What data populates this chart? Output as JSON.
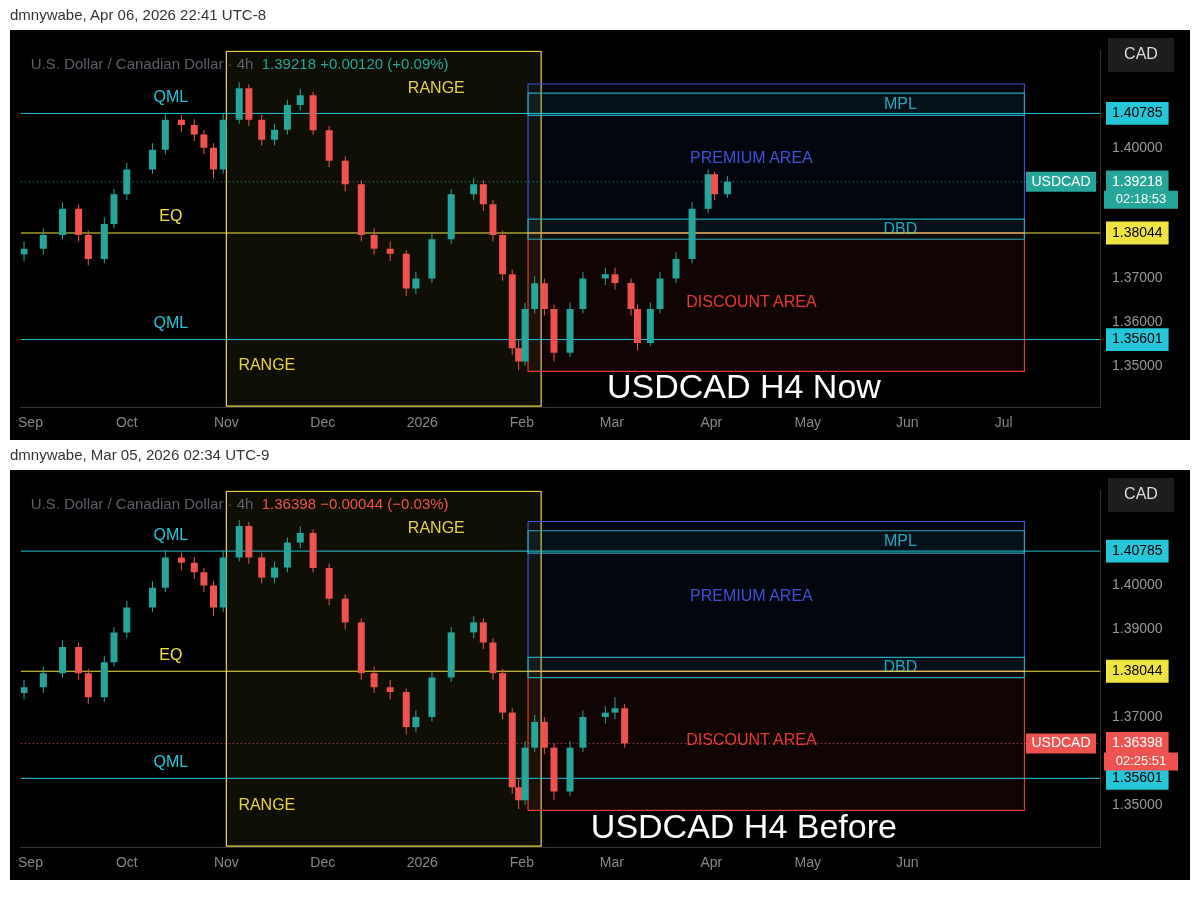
{
  "chart_data": [
    {
      "type": "candlestick",
      "title": "U.S. Dollar / Canadian Dollar · 4h",
      "subtitle": "1.39218 +0.00120 (+0.09%)",
      "x": [
        "2025-08-30",
        "2025-09-05",
        "2025-09-11",
        "2025-09-16",
        "2025-09-19",
        "2025-09-24",
        "2025-09-27",
        "2025-10-01",
        "2025-10-09",
        "2025-10-13",
        "2025-10-18",
        "2025-10-22",
        "2025-10-25",
        "2025-10-28",
        "2025-10-31",
        "2025-11-05",
        "2025-11-08",
        "2025-11-12",
        "2025-11-16",
        "2025-11-20",
        "2025-11-24",
        "2025-11-28",
        "2025-12-03",
        "2025-12-08",
        "2025-12-13",
        "2025-12-17",
        "2025-12-22",
        "2025-12-27",
        "2025-12-30",
        "2026-01-04",
        "2026-01-10",
        "2026-01-17",
        "2026-01-20",
        "2026-01-23",
        "2026-01-26",
        "2026-01-29",
        "2026-01-31",
        "2026-02-02",
        "2026-02-05",
        "2026-02-08",
        "2026-02-11",
        "2026-02-16",
        "2026-02-20",
        "2026-02-27",
        "2026-03-02",
        "2026-03-07",
        "2026-03-09",
        "2026-03-13",
        "2026-03-16",
        "2026-03-21",
        "2026-03-26",
        "2026-03-31",
        "2026-04-02",
        "2026-04-06"
      ],
      "ohlc": [
        [
          1.3755,
          1.3785,
          1.374,
          1.3768
        ],
        [
          1.3768,
          1.3815,
          1.3755,
          1.38
        ],
        [
          1.38,
          1.3875,
          1.379,
          1.386
        ],
        [
          1.386,
          1.387,
          1.3785,
          1.38
        ],
        [
          1.38,
          1.381,
          1.373,
          1.3745
        ],
        [
          1.3745,
          1.384,
          1.3735,
          1.3825
        ],
        [
          1.3825,
          1.3905,
          1.3815,
          1.3893
        ],
        [
          1.3893,
          1.3965,
          1.388,
          1.395
        ],
        [
          1.395,
          1.401,
          1.394,
          1.3995
        ],
        [
          1.3995,
          1.408,
          1.3985,
          1.4064
        ],
        [
          1.4064,
          1.4075,
          1.4035,
          1.4052
        ],
        [
          1.4052,
          1.4065,
          1.4015,
          1.403
        ],
        [
          1.403,
          1.404,
          1.3985,
          1.4
        ],
        [
          1.4,
          1.401,
          1.393,
          1.395
        ],
        [
          1.395,
          1.408,
          1.394,
          1.4064
        ],
        [
          1.4064,
          1.415,
          1.4055,
          1.4136
        ],
        [
          1.4136,
          1.4145,
          1.405,
          1.4064
        ],
        [
          1.4064,
          1.4075,
          1.4005,
          1.4018
        ],
        [
          1.4018,
          1.4055,
          1.4005,
          1.4041
        ],
        [
          1.4041,
          1.411,
          1.403,
          1.4098
        ],
        [
          1.4098,
          1.4135,
          1.4085,
          1.412
        ],
        [
          1.412,
          1.4128,
          1.403,
          1.404
        ],
        [
          1.404,
          1.405,
          1.3955,
          1.397
        ],
        [
          1.397,
          1.398,
          1.39,
          1.3916
        ],
        [
          1.3916,
          1.3925,
          1.3785,
          1.38
        ],
        [
          1.38,
          1.3815,
          1.3755,
          1.3768
        ],
        [
          1.3768,
          1.3785,
          1.374,
          1.3757
        ],
        [
          1.3757,
          1.3765,
          1.366,
          1.3677
        ],
        [
          1.3677,
          1.3715,
          1.3665,
          1.37
        ],
        [
          1.37,
          1.3805,
          1.369,
          1.379
        ],
        [
          1.379,
          1.3905,
          1.378,
          1.3893
        ],
        [
          1.3893,
          1.393,
          1.388,
          1.3916
        ],
        [
          1.3916,
          1.3925,
          1.3855,
          1.387
        ],
        [
          1.387,
          1.388,
          1.3785,
          1.38
        ],
        [
          1.38,
          1.381,
          1.3695,
          1.371
        ],
        [
          1.371,
          1.372,
          1.3525,
          1.354
        ],
        [
          1.354,
          1.356,
          1.349,
          1.351
        ],
        [
          1.351,
          1.3645,
          1.35,
          1.363
        ],
        [
          1.363,
          1.3705,
          1.362,
          1.3689
        ],
        [
          1.3689,
          1.37,
          1.3615,
          1.363
        ],
        [
          1.363,
          1.364,
          1.351,
          1.353
        ],
        [
          1.353,
          1.3645,
          1.352,
          1.363
        ],
        [
          1.363,
          1.3715,
          1.362,
          1.37
        ],
        [
          1.37,
          1.3725,
          1.3685,
          1.371
        ],
        [
          1.371,
          1.3725,
          1.3675,
          1.369
        ],
        [
          1.369,
          1.37,
          1.3615,
          1.363
        ],
        [
          1.363,
          1.364,
          1.3535,
          1.3552
        ],
        [
          1.3552,
          1.3645,
          1.3545,
          1.363
        ],
        [
          1.363,
          1.3715,
          1.362,
          1.37
        ],
        [
          1.37,
          1.376,
          1.369,
          1.3745
        ],
        [
          1.3745,
          1.3875,
          1.3735,
          1.386
        ],
        [
          1.386,
          1.395,
          1.385,
          1.3939
        ],
        [
          1.3939,
          1.3945,
          1.388,
          1.3893
        ],
        [
          1.3893,
          1.3935,
          1.3885,
          1.39218
        ]
      ],
      "xlim": [
        "2025-08-29",
        "2026-07-31"
      ],
      "xticks": [
        {
          "value": "2025-09-01",
          "label": "Sep"
        },
        {
          "value": "2025-10-01",
          "label": "Oct"
        },
        {
          "value": "2025-11-01",
          "label": "Nov"
        },
        {
          "value": "2025-12-01",
          "label": "Dec"
        },
        {
          "value": "2026-01-01",
          "label": "2026"
        },
        {
          "value": "2026-02-01",
          "label": "Feb"
        },
        {
          "value": "2026-03-01",
          "label": "Mar"
        },
        {
          "value": "2026-04-01",
          "label": "Apr"
        },
        {
          "value": "2026-05-01",
          "label": "May"
        },
        {
          "value": "2026-06-01",
          "label": "Jun"
        },
        {
          "value": "2026-07-01",
          "label": "Jul"
        }
      ],
      "ylim": [
        1.3405,
        1.4223
      ],
      "yticks": [
        {
          "value": 1.35,
          "label": "1.35000"
        },
        {
          "value": 1.35601,
          "label": "1.35601"
        },
        {
          "value": 1.36,
          "label": "1.36000"
        },
        {
          "value": 1.37,
          "label": "1.37000"
        },
        {
          "value": 1.38044,
          "label": "1.38044"
        },
        {
          "value": 1.39218,
          "label": "1.39218"
        },
        {
          "value": 1.4,
          "label": "1.40000"
        },
        {
          "value": 1.40785,
          "label": "1.40785"
        }
      ],
      "ref_lines": [
        {
          "axis": "y",
          "value": 1.40785,
          "label": "QML",
          "color": "#26c6da"
        },
        {
          "axis": "y",
          "value": 1.38044,
          "label": "EQ",
          "color": "#f0e442"
        },
        {
          "axis": "y",
          "value": 1.35601,
          "label": "QML",
          "color": "#26c6da"
        },
        {
          "axis": "y",
          "value": 1.39218,
          "label": "USDCAD",
          "color": "#26a69a",
          "line_style": "dotted"
        }
      ],
      "bands": [
        {
          "axis": "x",
          "from": "2025-11-01",
          "to": "2026-02-07",
          "label": "RANGE",
          "color": "#e6d34a"
        },
        {
          "axis": "y",
          "from": 1.38044,
          "to": 1.4146,
          "label": "PREMIUM AREA",
          "color": "#3f51d6"
        },
        {
          "axis": "y",
          "from": 1.3487,
          "to": 1.38044,
          "label": "DISCOUNT AREA",
          "color": "#e53935"
        },
        {
          "axis": "y",
          "from": 1.4074,
          "to": 1.4125,
          "label": "MPL",
          "color": "#26a6b8"
        },
        {
          "axis": "y",
          "from": 1.379,
          "to": 1.3836,
          "label": "DBD",
          "color": "#26a6b8"
        }
      ],
      "annotations": [
        "dmnywabe, Apr 06, 2026 22:41 UTC-8",
        "CAD",
        "02:18:53",
        "USDCAD H4 Now",
        "RANGE"
      ]
    },
    {
      "type": "candlestick",
      "title": "U.S. Dollar / Canadian Dollar · 4h",
      "subtitle": "1.36398 −0.00044 (−0.03%)",
      "x": [
        "2025-08-30",
        "2025-09-05",
        "2025-09-11",
        "2025-09-16",
        "2025-09-19",
        "2025-09-24",
        "2025-09-27",
        "2025-10-01",
        "2025-10-09",
        "2025-10-13",
        "2025-10-18",
        "2025-10-22",
        "2025-10-25",
        "2025-10-28",
        "2025-10-31",
        "2025-11-05",
        "2025-11-08",
        "2025-11-12",
        "2025-11-16",
        "2025-11-20",
        "2025-11-24",
        "2025-11-28",
        "2025-12-03",
        "2025-12-08",
        "2025-12-13",
        "2025-12-17",
        "2025-12-22",
        "2025-12-27",
        "2025-12-30",
        "2026-01-04",
        "2026-01-10",
        "2026-01-17",
        "2026-01-20",
        "2026-01-23",
        "2026-01-26",
        "2026-01-29",
        "2026-01-31",
        "2026-02-02",
        "2026-02-05",
        "2026-02-08",
        "2026-02-11",
        "2026-02-16",
        "2026-02-20",
        "2026-02-27",
        "2026-03-02",
        "2026-03-05"
      ],
      "ohlc": [
        [
          1.3755,
          1.3785,
          1.374,
          1.3768
        ],
        [
          1.3768,
          1.3815,
          1.3755,
          1.38
        ],
        [
          1.38,
          1.3875,
          1.379,
          1.386
        ],
        [
          1.386,
          1.387,
          1.3785,
          1.38
        ],
        [
          1.38,
          1.381,
          1.373,
          1.3745
        ],
        [
          1.3745,
          1.384,
          1.3735,
          1.3825
        ],
        [
          1.3825,
          1.3905,
          1.3815,
          1.3893
        ],
        [
          1.3893,
          1.3965,
          1.388,
          1.395
        ],
        [
          1.395,
          1.401,
          1.394,
          1.3995
        ],
        [
          1.3995,
          1.408,
          1.3985,
          1.4064
        ],
        [
          1.4064,
          1.4075,
          1.4035,
          1.4052
        ],
        [
          1.4052,
          1.4065,
          1.4015,
          1.403
        ],
        [
          1.403,
          1.404,
          1.3985,
          1.4
        ],
        [
          1.4,
          1.401,
          1.393,
          1.395
        ],
        [
          1.395,
          1.408,
          1.394,
          1.4064
        ],
        [
          1.4064,
          1.415,
          1.4055,
          1.4136
        ],
        [
          1.4136,
          1.4145,
          1.405,
          1.4064
        ],
        [
          1.4064,
          1.4075,
          1.4005,
          1.4018
        ],
        [
          1.4018,
          1.4055,
          1.4005,
          1.4041
        ],
        [
          1.4041,
          1.411,
          1.403,
          1.4098
        ],
        [
          1.4098,
          1.4135,
          1.4085,
          1.412
        ],
        [
          1.412,
          1.4128,
          1.403,
          1.404
        ],
        [
          1.404,
          1.405,
          1.3955,
          1.397
        ],
        [
          1.397,
          1.398,
          1.39,
          1.3916
        ],
        [
          1.3916,
          1.3925,
          1.3785,
          1.38
        ],
        [
          1.38,
          1.3815,
          1.3755,
          1.3768
        ],
        [
          1.3768,
          1.3785,
          1.374,
          1.3757
        ],
        [
          1.3757,
          1.3765,
          1.366,
          1.3677
        ],
        [
          1.3677,
          1.3715,
          1.3665,
          1.37
        ],
        [
          1.37,
          1.3805,
          1.369,
          1.379
        ],
        [
          1.379,
          1.3905,
          1.378,
          1.3893
        ],
        [
          1.3893,
          1.393,
          1.388,
          1.3916
        ],
        [
          1.3916,
          1.3925,
          1.3855,
          1.387
        ],
        [
          1.387,
          1.388,
          1.3785,
          1.38
        ],
        [
          1.38,
          1.381,
          1.3695,
          1.371
        ],
        [
          1.371,
          1.372,
          1.3525,
          1.354
        ],
        [
          1.354,
          1.356,
          1.349,
          1.351
        ],
        [
          1.351,
          1.3645,
          1.35,
          1.363
        ],
        [
          1.363,
          1.3705,
          1.362,
          1.3689
        ],
        [
          1.3689,
          1.37,
          1.3615,
          1.363
        ],
        [
          1.363,
          1.364,
          1.351,
          1.353
        ],
        [
          1.353,
          1.3645,
          1.352,
          1.363
        ],
        [
          1.363,
          1.3715,
          1.362,
          1.37
        ],
        [
          1.37,
          1.3725,
          1.3685,
          1.371
        ],
        [
          1.371,
          1.3745,
          1.3695,
          1.372
        ],
        [
          1.372,
          1.373,
          1.363,
          1.36398
        ]
      ],
      "xlim": [
        "2025-08-29",
        "2026-07-31"
      ],
      "xticks": [
        {
          "value": "2025-09-01",
          "label": "Sep"
        },
        {
          "value": "2025-10-01",
          "label": "Oct"
        },
        {
          "value": "2025-11-01",
          "label": "Nov"
        },
        {
          "value": "2025-12-01",
          "label": "Dec"
        },
        {
          "value": "2026-01-01",
          "label": "2026"
        },
        {
          "value": "2026-02-01",
          "label": "Feb"
        },
        {
          "value": "2026-03-01",
          "label": "Mar"
        },
        {
          "value": "2026-04-01",
          "label": "Apr"
        },
        {
          "value": "2026-05-01",
          "label": "May"
        },
        {
          "value": "2026-06-01",
          "label": "Jun"
        }
      ],
      "ylim": [
        1.3403,
        1.4217
      ],
      "yticks": [
        {
          "value": 1.35,
          "label": "1.35000"
        },
        {
          "value": 1.35601,
          "label": "1.35601"
        },
        {
          "value": 1.36398,
          "label": "1.36398"
        },
        {
          "value": 1.37,
          "label": "1.37000"
        },
        {
          "value": 1.38044,
          "label": "1.38044"
        },
        {
          "value": 1.39,
          "label": "1.39000"
        },
        {
          "value": 1.4,
          "label": "1.40000"
        },
        {
          "value": 1.40785,
          "label": "1.40785"
        }
      ],
      "ref_lines": [
        {
          "axis": "y",
          "value": 1.40785,
          "label": "QML",
          "color": "#26c6da"
        },
        {
          "axis": "y",
          "value": 1.38044,
          "label": "EQ",
          "color": "#f0e442"
        },
        {
          "axis": "y",
          "value": 1.35601,
          "label": "QML",
          "color": "#26c6da"
        },
        {
          "axis": "y",
          "value": 1.36398,
          "label": "USDCAD",
          "color": "#ef5350",
          "line_style": "dotted"
        }
      ],
      "bands": [
        {
          "axis": "x",
          "from": "2025-11-01",
          "to": "2026-02-07",
          "label": "RANGE",
          "color": "#e6d34a"
        },
        {
          "axis": "y",
          "from": 1.38044,
          "to": 1.4146,
          "label": "PREMIUM AREA",
          "color": "#3f51d6"
        },
        {
          "axis": "y",
          "from": 1.3487,
          "to": 1.38044,
          "label": "DISCOUNT AREA",
          "color": "#e53935"
        },
        {
          "axis": "y",
          "from": 1.4074,
          "to": 1.4125,
          "label": "MPL",
          "color": "#26a6b8"
        },
        {
          "axis": "y",
          "from": 1.379,
          "to": 1.3836,
          "label": "DBD",
          "color": "#26a6b8"
        }
      ],
      "annotations": [
        "dmnywabe, Mar 05, 2026 02:34 UTC-9",
        "CAD",
        "02:25:51",
        "USDCAD H4 Before",
        "RANGE"
      ]
    }
  ]
}
